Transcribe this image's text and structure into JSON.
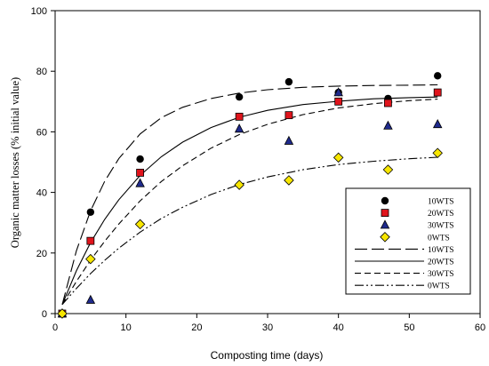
{
  "chart_data": {
    "type": "scatter",
    "title": "",
    "xlabel": "Composting time (days)",
    "ylabel": "Organic matter losses (% initial value)",
    "xlim": [
      0,
      60
    ],
    "ylim": [
      0,
      100
    ],
    "xticks": [
      "0",
      "10",
      "20",
      "30",
      "40",
      "50",
      "60"
    ],
    "yticks": [
      "0",
      "20",
      "40",
      "60",
      "80",
      "100"
    ],
    "grid": false,
    "legend_position": "bottom-right",
    "series": [
      {
        "name": "10WTS",
        "kind": "points",
        "marker": "circle",
        "color": "#000000",
        "x": [
          1,
          5,
          12,
          26,
          33,
          40,
          47,
          54
        ],
        "y": [
          0,
          33.5,
          51,
          71.5,
          76.5,
          73,
          71,
          78.5
        ]
      },
      {
        "name": "20WTS",
        "kind": "points",
        "marker": "square",
        "color": "#e0141c",
        "x": [
          1,
          5,
          12,
          26,
          33,
          40,
          47,
          54
        ],
        "y": [
          0,
          24,
          46.5,
          65,
          65.5,
          70,
          69.5,
          73
        ]
      },
      {
        "name": "30WTS",
        "kind": "points",
        "marker": "triangle",
        "color": "#1f2a8c",
        "x": [
          1,
          5,
          12,
          26,
          33,
          40,
          47,
          54
        ],
        "y": [
          0,
          4.5,
          43,
          61,
          57,
          73,
          62,
          62.5
        ]
      },
      {
        "name": "0WTS",
        "kind": "points",
        "marker": "diamond",
        "color": "#f7e600",
        "x": [
          1,
          5,
          12,
          26,
          33,
          40,
          47,
          54
        ],
        "y": [
          0,
          18,
          29.5,
          42.5,
          44,
          51.5,
          47.5,
          53
        ]
      },
      {
        "name": "10WTS",
        "kind": "line",
        "dash": "long-dash",
        "x": [
          1,
          3,
          5,
          7,
          9,
          12,
          15,
          18,
          22,
          26,
          30,
          35,
          40,
          45,
          50,
          54
        ],
        "y": [
          3,
          20.7,
          33.9,
          43.7,
          51.2,
          59.3,
          64.7,
          68.1,
          71.0,
          72.8,
          73.9,
          74.7,
          75.1,
          75.3,
          75.4,
          75.5
        ]
      },
      {
        "name": "20WTS",
        "kind": "line",
        "dash": "solid",
        "x": [
          1,
          3,
          5,
          7,
          9,
          12,
          15,
          18,
          22,
          26,
          30,
          35,
          40,
          45,
          50,
          54
        ],
        "y": [
          3,
          14.1,
          23.4,
          31.1,
          37.6,
          45.6,
          51.8,
          56.6,
          61.4,
          64.8,
          67.1,
          69.0,
          70.1,
          70.9,
          71.3,
          71.5
        ]
      },
      {
        "name": "30WTS",
        "kind": "line",
        "dash": "dash",
        "x": [
          1,
          3,
          5,
          7,
          9,
          12,
          15,
          18,
          22,
          26,
          30,
          35,
          40,
          45,
          50,
          54
        ],
        "y": [
          3,
          10.6,
          17.6,
          23.9,
          29.6,
          37.2,
          43.6,
          48.8,
          54.6,
          59.1,
          62.5,
          65.7,
          67.9,
          69.3,
          70.3,
          70.8
        ]
      },
      {
        "name": "0WTS",
        "kind": "line",
        "dash": "dash-dot-dot",
        "x": [
          1,
          3,
          5,
          7,
          9,
          12,
          15,
          18,
          22,
          26,
          30,
          35,
          40,
          45,
          50,
          54
        ],
        "y": [
          3,
          8.3,
          13.2,
          17.6,
          21.6,
          26.9,
          31.4,
          35.1,
          39.3,
          42.6,
          45.1,
          47.5,
          49.2,
          50.3,
          51.1,
          51.6
        ]
      }
    ]
  }
}
